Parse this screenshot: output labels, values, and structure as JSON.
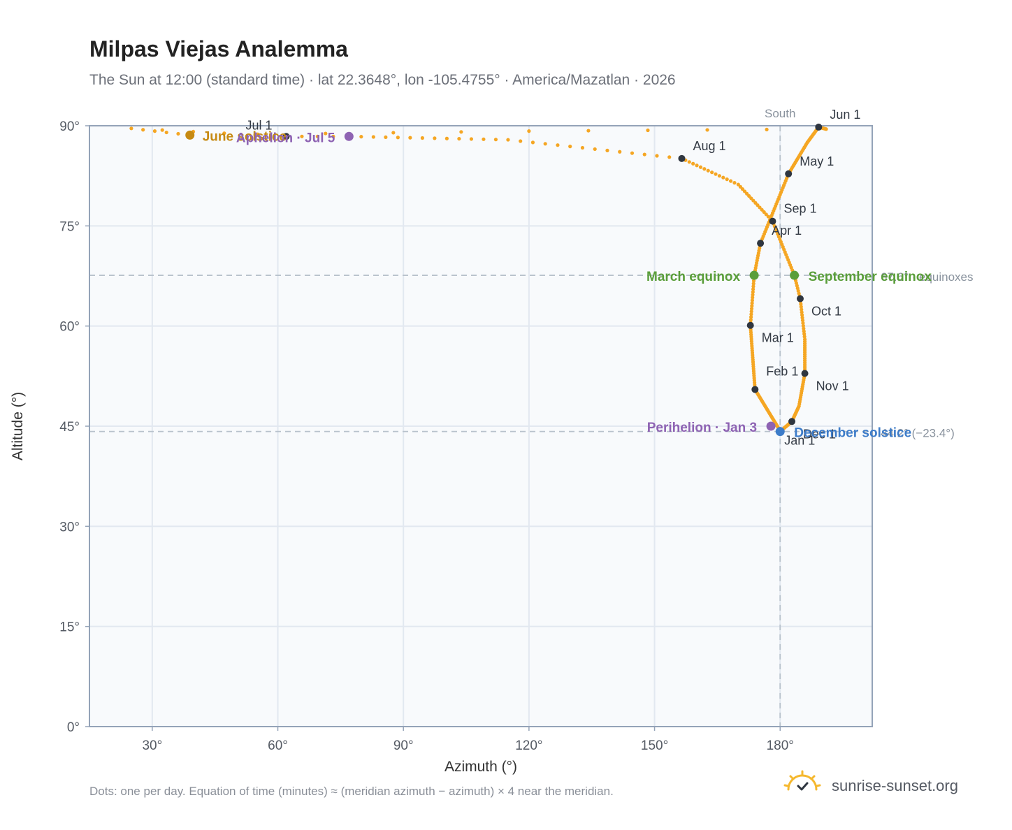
{
  "title": "Milpas Viejas Analemma",
  "subtitle": "The Sun at 12:00 (standard time) · lat 22.3648°, lon -105.4755° · America/Mazatlan · 2026",
  "footnote": "Dots: one per day. Equation of time (minutes) ≈ (meridian azimuth − azimuth) × 4 near the meridian.",
  "brand": {
    "name": "sunrise-sunset.org",
    "icon": "sun-logo-icon"
  },
  "colors": {
    "plot_bg": "#f8fafc",
    "grid": "#e2e8f0",
    "frame": "#94a3b8",
    "path": "#f5a623",
    "month_dot": "#2f3640",
    "solstice_june": "#c68a12",
    "solstice_december": "#3d7cc9",
    "equinox": "#5a9e3a",
    "apsis": "#8e63b3",
    "reference": "#b8c2cc"
  },
  "chart_data": {
    "type": "scatter",
    "xlabel": "Azimuth (°)",
    "ylabel": "Altitude (°)",
    "xlim": [
      15,
      202
    ],
    "ylim": [
      0,
      90
    ],
    "x_ticks": [
      30,
      60,
      90,
      120,
      150,
      180
    ],
    "x_tick_labels": [
      "30°",
      "60°",
      "90°",
      "120°",
      "150°",
      "180°"
    ],
    "y_ticks": [
      0,
      15,
      30,
      45,
      60,
      75,
      90
    ],
    "y_tick_labels": [
      "0°",
      "15°",
      "30°",
      "45°",
      "60°",
      "75°",
      "90°"
    ],
    "grid": true,
    "analemma_anchors": [
      {
        "doy": 1,
        "az": 180.0,
        "alt": 44.3
      },
      {
        "doy": 32,
        "az": 174.0,
        "alt": 50.5
      },
      {
        "doy": 60,
        "az": 172.9,
        "alt": 60.1
      },
      {
        "doy": 78,
        "az": 173.8,
        "alt": 67.6
      },
      {
        "doy": 91,
        "az": 175.3,
        "alt": 72.4
      },
      {
        "doy": 121,
        "az": 182.0,
        "alt": 82.8
      },
      {
        "doy": 140,
        "az": 186.5,
        "alt": 87.5
      },
      {
        "doy": 152,
        "az": 189.2,
        "alt": 89.8
      },
      {
        "doy": 162,
        "az": 191.0,
        "alt": 89.5
      },
      {
        "doy": 167,
        "az": 120.0,
        "alt": 89.2
      },
      {
        "doy": 172,
        "az": 39.0,
        "alt": 88.6
      },
      {
        "doy": 177,
        "az": 25.0,
        "alt": 89.6
      },
      {
        "doy": 182,
        "az": 62.0,
        "alt": 88.4
      },
      {
        "doy": 186,
        "az": 77.0,
        "alt": 88.4
      },
      {
        "doy": 199,
        "az": 115.0,
        "alt": 87.9
      },
      {
        "doy": 213,
        "az": 156.5,
        "alt": 85.1
      },
      {
        "doy": 228,
        "az": 170.0,
        "alt": 81.2
      },
      {
        "doy": 244,
        "az": 178.2,
        "alt": 75.7
      },
      {
        "doy": 265,
        "az": 183.4,
        "alt": 67.6
      },
      {
        "doy": 274,
        "az": 184.8,
        "alt": 64.1
      },
      {
        "doy": 289,
        "az": 185.9,
        "alt": 58.0
      },
      {
        "doy": 305,
        "az": 185.9,
        "alt": 52.9
      },
      {
        "doy": 320,
        "az": 184.5,
        "alt": 48.0
      },
      {
        "doy": 335,
        "az": 182.8,
        "alt": 45.7
      },
      {
        "doy": 355,
        "az": 180.0,
        "alt": 44.2
      },
      {
        "doy": 366,
        "az": 180.0,
        "alt": 44.3
      }
    ],
    "month_markers": [
      {
        "label": "Jan 1",
        "az": 180.0,
        "alt": 44.3
      },
      {
        "label": "Feb 1",
        "az": 174.0,
        "alt": 50.5
      },
      {
        "label": "Mar 1",
        "az": 172.9,
        "alt": 60.1
      },
      {
        "label": "Apr 1",
        "az": 175.3,
        "alt": 72.4
      },
      {
        "label": "May 1",
        "az": 182.0,
        "alt": 82.8
      },
      {
        "label": "Jun 1",
        "az": 189.2,
        "alt": 89.8
      },
      {
        "label": "Jul 1",
        "az": 62.0,
        "alt": 88.4
      },
      {
        "label": "Aug 1",
        "az": 156.5,
        "alt": 85.1
      },
      {
        "label": "Sep 1",
        "az": 178.2,
        "alt": 75.7
      },
      {
        "label": "Oct 1",
        "az": 184.8,
        "alt": 64.1
      },
      {
        "label": "Nov 1",
        "az": 185.9,
        "alt": 52.9
      },
      {
        "label": "Dec 1",
        "az": 182.8,
        "alt": 45.7
      }
    ],
    "events": [
      {
        "label": "June solstice",
        "az": 39.0,
        "alt": 88.6,
        "kind": "solstice_june"
      },
      {
        "label": "December solstice",
        "az": 180.0,
        "alt": 44.2,
        "kind": "solstice_december"
      },
      {
        "label": "March equinox",
        "az": 173.8,
        "alt": 67.6,
        "kind": "equinox"
      },
      {
        "label": "September equinox",
        "az": 183.4,
        "alt": 67.6,
        "kind": "equinox"
      },
      {
        "label": "Perihelion · Jan 3",
        "az": 177.8,
        "alt": 45.0,
        "kind": "apsis"
      },
      {
        "label": "Aphelion · Jul 5",
        "az": 77.0,
        "alt": 88.4,
        "kind": "apsis"
      }
    ],
    "reference_lines": {
      "meridian": {
        "az": 180,
        "label": "South"
      },
      "equinox_alt": {
        "alt": 67.6,
        "label": "67.6° · equinoxes"
      },
      "solstice_alt": {
        "alt": 44.2,
        "label": "44.2° (−23.4°)"
      }
    }
  }
}
